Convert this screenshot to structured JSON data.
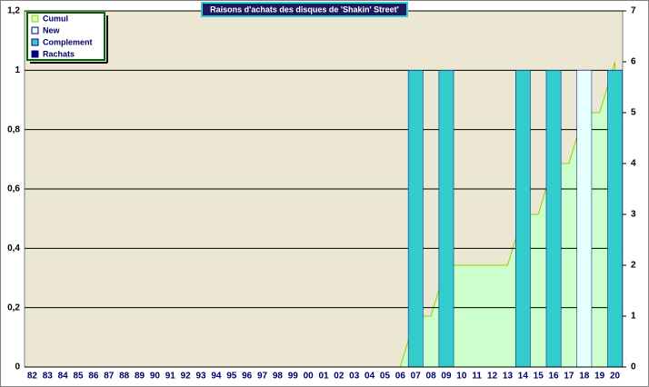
{
  "chart_data": {
    "type": "bar",
    "title": "Raisons d'achats des disques de 'Shakin' Street'",
    "categories": [
      "82",
      "83",
      "84",
      "85",
      "86",
      "87",
      "88",
      "89",
      "90",
      "91",
      "92",
      "93",
      "94",
      "95",
      "96",
      "97",
      "98",
      "99",
      "00",
      "01",
      "02",
      "03",
      "04",
      "05",
      "06",
      "07",
      "08",
      "09",
      "10",
      "11",
      "12",
      "13",
      "14",
      "15",
      "16",
      "17",
      "18",
      "19",
      "20"
    ],
    "series": [
      {
        "name": "Cumul",
        "color": "#ccffcc",
        "type": "area",
        "axis": "y2",
        "values": [
          0,
          0,
          0,
          0,
          0,
          0,
          0,
          0,
          0,
          0,
          0,
          0,
          0,
          0,
          0,
          0,
          0,
          0,
          0,
          0,
          0,
          0,
          0,
          0,
          0,
          1,
          1,
          2,
          2,
          2,
          2,
          2,
          3,
          3,
          4,
          4,
          5,
          5,
          6
        ]
      },
      {
        "name": "New",
        "color": "#e6ffff",
        "values": [
          0,
          0,
          0,
          0,
          0,
          0,
          0,
          0,
          0,
          0,
          0,
          0,
          0,
          0,
          0,
          0,
          0,
          0,
          0,
          0,
          0,
          0,
          0,
          0,
          0,
          0,
          0,
          0,
          0,
          0,
          0,
          0,
          0,
          0,
          0,
          0,
          1,
          0,
          0
        ]
      },
      {
        "name": "Complement",
        "color": "#33cccc",
        "values": [
          0,
          0,
          0,
          0,
          0,
          0,
          0,
          0,
          0,
          0,
          0,
          0,
          0,
          0,
          0,
          0,
          0,
          0,
          0,
          0,
          0,
          0,
          0,
          0,
          0,
          1,
          0,
          1,
          0,
          0,
          0,
          0,
          1,
          0,
          1,
          0,
          0,
          0,
          1
        ]
      },
      {
        "name": "Rachats",
        "color": "#000080",
        "values": [
          0,
          0,
          0,
          0,
          0,
          0,
          0,
          0,
          0,
          0,
          0,
          0,
          0,
          0,
          0,
          0,
          0,
          0,
          0,
          0,
          0,
          0,
          0,
          0,
          0,
          0,
          0,
          0,
          0,
          0,
          0,
          0,
          0,
          0,
          0,
          0,
          0,
          0,
          0
        ]
      }
    ],
    "ylim": [
      0,
      1.2
    ],
    "yticks": [
      0,
      {
        "value": 0.2,
        "label": "0,2"
      },
      {
        "value": 0.4,
        "label": "0,4"
      },
      {
        "value": 0.6,
        "label": "0,6"
      },
      {
        "value": 0.8,
        "label": "0,8"
      },
      1,
      {
        "value": 1.2,
        "label": "1,2"
      }
    ],
    "y2lim": [
      0,
      7
    ],
    "y2ticks": [
      0,
      1,
      2,
      3,
      4,
      5,
      6,
      7
    ],
    "grid": true,
    "legend": "top-left"
  }
}
